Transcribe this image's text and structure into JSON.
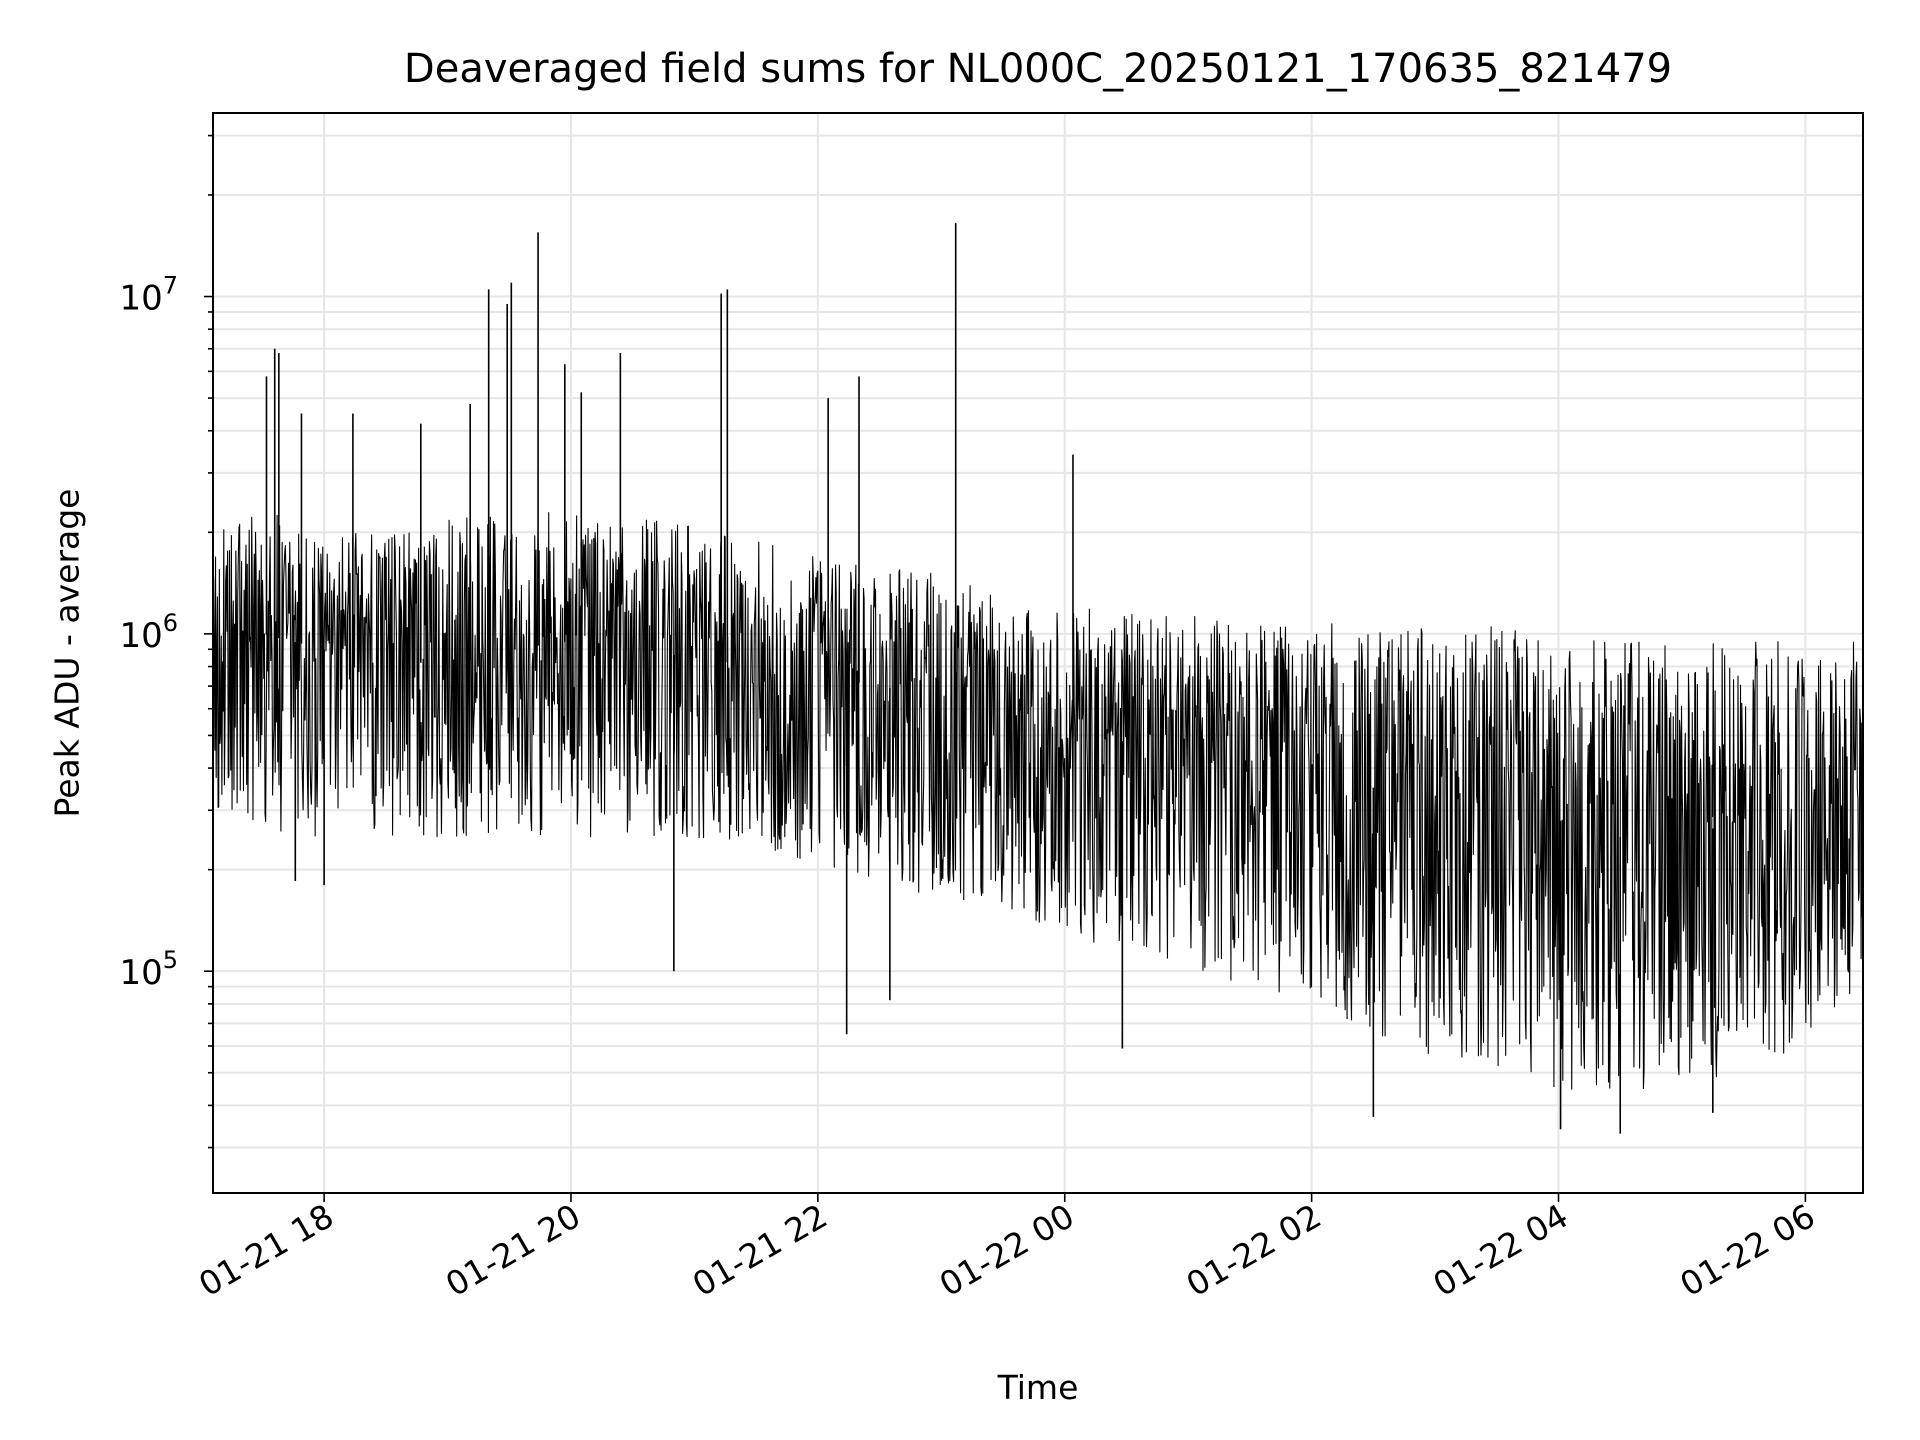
{
  "chart_data": {
    "type": "line",
    "title": "Deaveraged field sums for NL000C_20250121_170635_821479",
    "xlabel": "Time",
    "ylabel": "Peak ADU - average",
    "yscale": "log",
    "grid": true,
    "line_color": "#000000",
    "grid_color": "#e6e6e6",
    "xlim": [
      "2025-01-21 17:06",
      "2025-01-22 06:28"
    ],
    "ylim": [
      22000,
      35000000
    ],
    "x_ticks": [
      "2025-01-21 18:00",
      "2025-01-21 20:00",
      "2025-01-21 22:00",
      "2025-01-22 00:00",
      "2025-01-22 02:00",
      "2025-01-22 04:00",
      "2025-01-22 06:00"
    ],
    "x_tick_labels": [
      "01-21 18",
      "01-21 20",
      "01-21 22",
      "01-22 00",
      "01-22 02",
      "01-22 04",
      "01-22 06"
    ],
    "y_ticks": [
      {
        "base": "10",
        "exp": "5",
        "value": 100000
      },
      {
        "base": "10",
        "exp": "6",
        "value": 1000000
      },
      {
        "base": "10",
        "exp": "7",
        "value": 10000000
      }
    ],
    "series": [
      {
        "x": [
          "2025-01-21 17:06",
          "2025-01-21 17:30",
          "2025-01-21 18:00",
          "2025-01-21 18:30",
          "2025-01-21 19:00",
          "2025-01-21 19:30",
          "2025-01-21 20:00",
          "2025-01-21 20:30",
          "2025-01-21 21:00",
          "2025-01-21 21:30",
          "2025-01-21 22:00",
          "2025-01-21 22:30",
          "2025-01-21 23:00",
          "2025-01-21 23:30",
          "2025-01-22 00:00",
          "2025-01-22 00:30",
          "2025-01-22 01:00",
          "2025-01-22 01:30",
          "2025-01-22 02:00",
          "2025-01-22 02:30",
          "2025-01-22 03:00",
          "2025-01-22 03:30",
          "2025-01-22 04:00",
          "2025-01-22 04:30",
          "2025-01-22 05:00",
          "2025-01-22 05:30",
          "2025-01-22 06:00",
          "2025-01-22 06:28"
        ],
        "y_median": [
          800000,
          1000000,
          900000,
          850000,
          800000,
          900000,
          950000,
          900000,
          850000,
          800000,
          750000,
          700000,
          650000,
          600000,
          500000,
          480000,
          450000,
          420000,
          400000,
          350000,
          300000,
          300000,
          280000,
          250000,
          260000,
          270000,
          280000,
          300000
        ],
        "y_low": [
          300000,
          250000,
          250000,
          250000,
          250000,
          250000,
          250000,
          250000,
          250000,
          230000,
          200000,
          180000,
          160000,
          150000,
          130000,
          110000,
          100000,
          90000,
          80000,
          60000,
          55000,
          50000,
          45000,
          42000,
          45000,
          50000,
          60000,
          90000
        ],
        "y_high": [
          2000000,
          2500000,
          2000000,
          2000000,
          2200000,
          2300000,
          2300000,
          2200000,
          2100000,
          1900000,
          1700000,
          1600000,
          1500000,
          1300000,
          1200000,
          1200000,
          1150000,
          1100000,
          1100000,
          1050000,
          1050000,
          1050000,
          1050000,
          950000,
          950000,
          950000,
          950000,
          950000
        ]
      }
    ],
    "spikes": [
      {
        "x": "2025-01-21 17:32",
        "y": 5800000
      },
      {
        "x": "2025-01-21 17:36",
        "y": 7000000
      },
      {
        "x": "2025-01-21 17:38",
        "y": 6800000
      },
      {
        "x": "2025-01-21 17:49",
        "y": 4500000
      },
      {
        "x": "2025-01-21 18:14",
        "y": 4500000
      },
      {
        "x": "2025-01-21 18:47",
        "y": 4200000
      },
      {
        "x": "2025-01-21 19:11",
        "y": 4800000
      },
      {
        "x": "2025-01-21 19:20",
        "y": 10500000
      },
      {
        "x": "2025-01-21 19:29",
        "y": 9500000
      },
      {
        "x": "2025-01-21 19:31",
        "y": 11000000
      },
      {
        "x": "2025-01-21 19:44",
        "y": 15500000
      },
      {
        "x": "2025-01-21 19:57",
        "y": 6300000
      },
      {
        "x": "2025-01-21 20:05",
        "y": 5200000
      },
      {
        "x": "2025-01-21 20:24",
        "y": 6800000
      },
      {
        "x": "2025-01-21 21:13",
        "y": 10200000
      },
      {
        "x": "2025-01-21 21:16",
        "y": 10500000
      },
      {
        "x": "2025-01-21 22:05",
        "y": 5000000
      },
      {
        "x": "2025-01-21 22:20",
        "y": 5800000
      },
      {
        "x": "2025-01-21 23:07",
        "y": 16500000
      },
      {
        "x": "2025-01-22 00:04",
        "y": 3400000
      }
    ],
    "dips": [
      {
        "x": "2025-01-21 17:46",
        "y": 185000
      },
      {
        "x": "2025-01-21 18:00",
        "y": 180000
      },
      {
        "x": "2025-01-21 20:50",
        "y": 100000
      },
      {
        "x": "2025-01-21 22:14",
        "y": 65000
      },
      {
        "x": "2025-01-21 22:35",
        "y": 82000
      },
      {
        "x": "2025-01-22 00:28",
        "y": 59000
      },
      {
        "x": "2025-01-22 02:30",
        "y": 37000
      },
      {
        "x": "2025-01-22 04:01",
        "y": 34000
      },
      {
        "x": "2025-01-22 04:30",
        "y": 33000
      },
      {
        "x": "2025-01-22 05:15",
        "y": 38000
      }
    ]
  }
}
